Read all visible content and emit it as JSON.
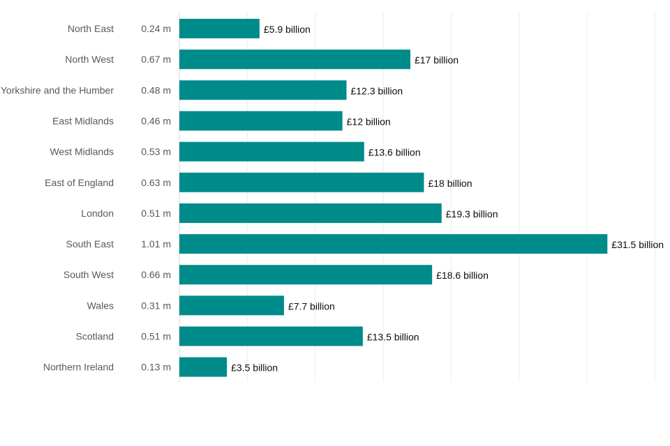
{
  "chart_data": {
    "type": "bar",
    "orientation": "horizontal",
    "title": "",
    "xlabel": "",
    "ylabel": "",
    "xlim": [
      0,
      35
    ],
    "grid": true,
    "legend": "none",
    "bar_color": "#008b8b",
    "categories": [
      "North East",
      "North West",
      "Yorkshire and the Humber",
      "East Midlands",
      "West Midlands",
      "East of England",
      "London",
      "South East",
      "South West",
      "Wales",
      "Scotland",
      "Northern Ireland"
    ],
    "counts": [
      "0.24 m",
      "0.67 m",
      "0.48 m",
      "0.46 m",
      "0.53 m",
      "0.63 m",
      "0.51 m",
      "1.01 m",
      "0.66 m",
      "0.31 m",
      "0.51 m",
      "0.13 m"
    ],
    "values": [
      5.9,
      17,
      12.3,
      12,
      13.6,
      18,
      19.3,
      31.5,
      18.6,
      7.7,
      13.5,
      3.5
    ],
    "value_labels": [
      "£5.9 billion",
      "£17 billion",
      "£12.3 billion",
      "£12 billion",
      "£13.6 billion",
      "£18 billion",
      "£19.3 billion",
      "£31.5 billion",
      "£18.6 billion",
      "£7.7 billion",
      "£13.5 billion",
      "£3.5 billion"
    ]
  }
}
